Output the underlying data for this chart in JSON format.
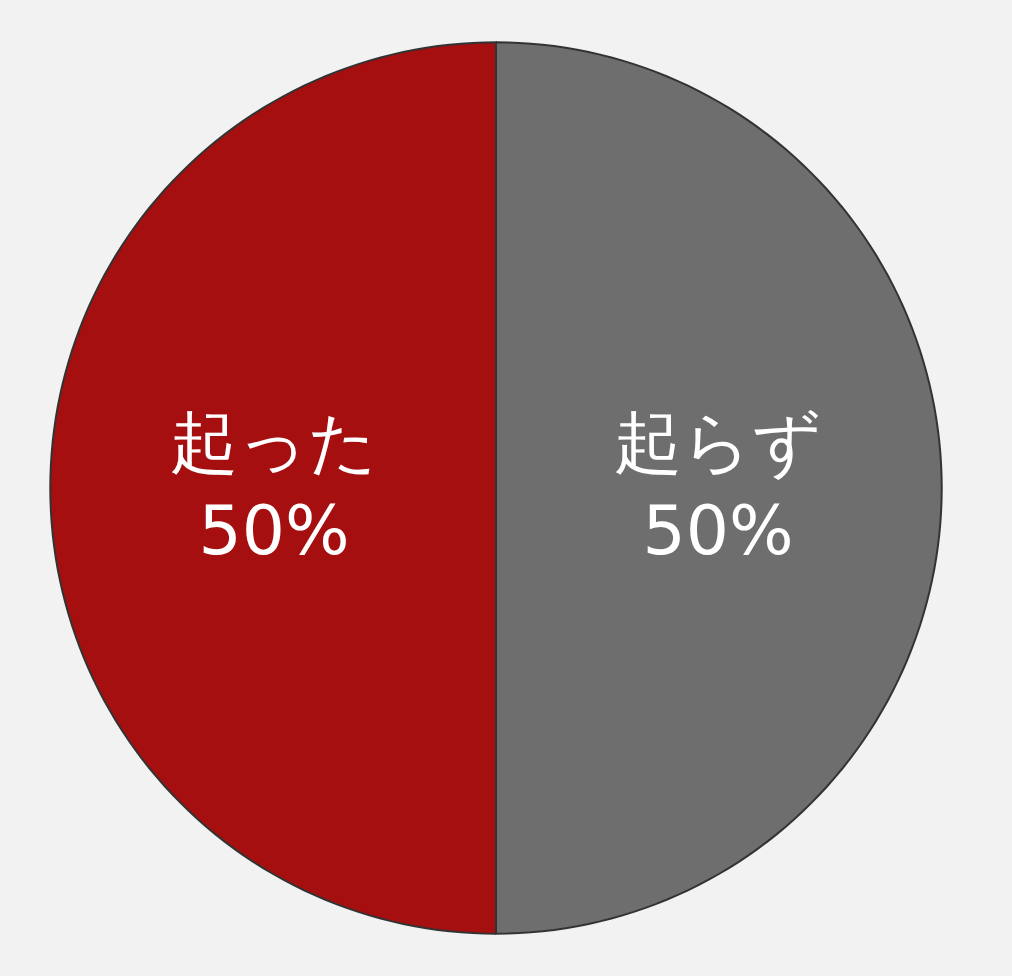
{
  "chart_data": {
    "type": "pie",
    "categories": [
      "起らず",
      "起った"
    ],
    "values": [
      50,
      50
    ],
    "value_labels": [
      "50%",
      "50%"
    ],
    "colors": [
      "#6e6e6e",
      "#a50f0f"
    ]
  }
}
